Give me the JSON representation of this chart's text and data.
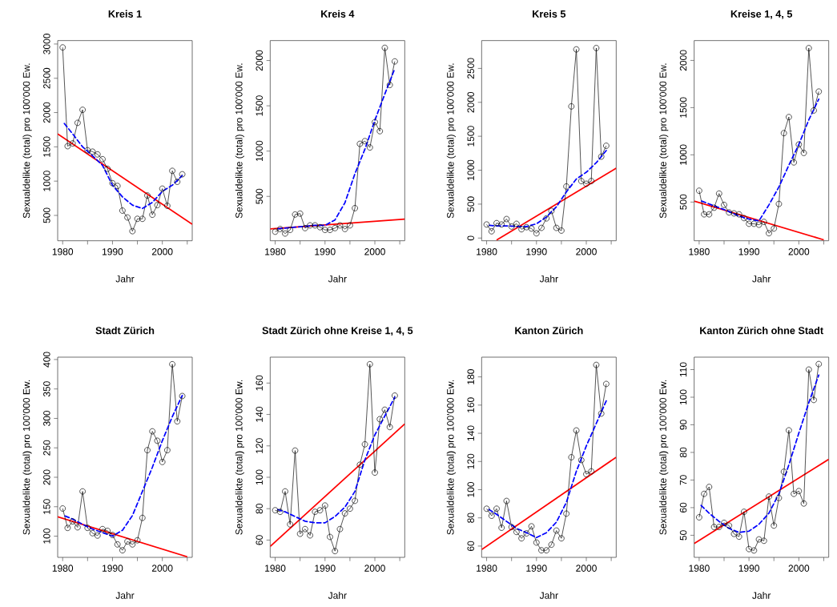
{
  "chart_data": [
    {
      "type": "line",
      "title": "Kreis 1",
      "xlabel": "Jahr",
      "ylabel": "Sexualdelikte (total) pro 100'000 Ew.",
      "xlim": [
        1979,
        2006
      ],
      "ylim": [
        130,
        3050
      ],
      "xticks": [
        1980,
        {
          "value": 1985,
          "label": null
        },
        1990,
        {
          "value": 1995,
          "label": null
        },
        2000,
        {
          "value": 2005,
          "label": null
        }
      ],
      "yticks": [
        500,
        1000,
        1500,
        2000,
        2500,
        3000
      ],
      "series": [
        {
          "color": "#000000",
          "marker": "circle",
          "line_style": "solid",
          "x": [
            1980,
            1981,
            1982,
            1983,
            1984,
            1985,
            1986,
            1987,
            1988,
            1989,
            1990,
            1991,
            1992,
            1993,
            1994,
            1995,
            1996,
            1997,
            1998,
            1999,
            2000,
            2001,
            2002,
            2003,
            2004
          ],
          "values": [
            2950,
            1510,
            1550,
            1850,
            2040,
            1450,
            1430,
            1390,
            1320,
            1180,
            970,
            930,
            570,
            470,
            270,
            450,
            450,
            790,
            510,
            650,
            890,
            640,
            1150,
            990,
            1100
          ]
        },
        {
          "color": "#0000ff",
          "marker": "none",
          "line_style": "dashed",
          "x": [
            1980,
            1982,
            1984,
            1986,
            1988,
            1990,
            1992,
            1994,
            1996,
            1998,
            2000,
            2002,
            2004
          ],
          "values": [
            1870,
            1690,
            1500,
            1370,
            1230,
            940,
            770,
            650,
            600,
            690,
            850,
            940,
            1080
          ]
        },
        {
          "color": "#ff0000",
          "marker": "none",
          "line_style": "solid",
          "x": [
            1979,
            2006
          ],
          "values": [
            1690,
            370
          ]
        }
      ]
    },
    {
      "type": "line",
      "title": "Kreis 4",
      "xlabel": "Jahr",
      "ylabel": "Sexualdelikte (total) pro 100'000 Ew.",
      "xlim": [
        1979,
        2006
      ],
      "ylim": [
        10,
        2220
      ],
      "xticks": [
        1980,
        {
          "value": 1985,
          "label": null
        },
        1990,
        {
          "value": 1995,
          "label": null
        },
        2000,
        {
          "value": 2005,
          "label": null
        }
      ],
      "yticks": [
        500,
        1000,
        1500,
        2000
      ],
      "series": [
        {
          "color": "#000000",
          "marker": "circle",
          "line_style": "solid",
          "x": [
            1980,
            1981,
            1982,
            1983,
            1984,
            1985,
            1986,
            1987,
            1988,
            1989,
            1990,
            1991,
            1992,
            1993,
            1994,
            1995,
            1996,
            1997,
            1998,
            1999,
            2000,
            2001,
            2002,
            2003,
            2004
          ],
          "values": [
            110,
            140,
            90,
            130,
            300,
            310,
            150,
            180,
            180,
            160,
            130,
            130,
            150,
            180,
            140,
            180,
            370,
            1080,
            1110,
            1040,
            1320,
            1220,
            2140,
            1730,
            1990
          ]
        },
        {
          "color": "#0000ff",
          "marker": "none",
          "line_style": "dashed",
          "x": [
            1980,
            1982,
            1984,
            1986,
            1988,
            1990,
            1992,
            1994,
            1996,
            1998,
            2000,
            2002,
            2004
          ],
          "values": [
            140,
            150,
            160,
            170,
            180,
            180,
            240,
            430,
            750,
            1020,
            1340,
            1630,
            1910
          ]
        },
        {
          "color": "#ff0000",
          "marker": "none",
          "line_style": "solid",
          "x": [
            1979,
            2006
          ],
          "values": [
            140,
            250
          ]
        }
      ]
    },
    {
      "type": "line",
      "title": "Kreis 5",
      "xlabel": "Jahr",
      "ylabel": "Sexualdelikte (total) pro 100'000 Ew.",
      "xlim": [
        1979,
        2006
      ],
      "ylim": [
        -40,
        2910
      ],
      "xticks": [
        1980,
        {
          "value": 1985,
          "label": null
        },
        1990,
        {
          "value": 1995,
          "label": null
        },
        2000,
        {
          "value": 2005,
          "label": null
        }
      ],
      "yticks": [
        0,
        500,
        1000,
        1500,
        2000,
        2500
      ],
      "series": [
        {
          "color": "#000000",
          "marker": "circle",
          "line_style": "solid",
          "x": [
            1980,
            1981,
            1982,
            1983,
            1984,
            1985,
            1986,
            1987,
            1988,
            1989,
            1990,
            1991,
            1992,
            1993,
            1994,
            1995,
            1996,
            1997,
            1998,
            1999,
            2000,
            2001,
            2002,
            2003,
            2004
          ],
          "values": [
            200,
            100,
            220,
            200,
            280,
            170,
            210,
            130,
            160,
            140,
            70,
            150,
            290,
            400,
            150,
            110,
            760,
            1940,
            2780,
            840,
            800,
            840,
            2800,
            1200,
            1360
          ]
        },
        {
          "color": "#0000ff",
          "marker": "none",
          "line_style": "dashed",
          "x": [
            1980,
            1982,
            1984,
            1986,
            1988,
            1990,
            1992,
            1994,
            1996,
            1998,
            2000,
            2002,
            2004
          ],
          "values": [
            190,
            180,
            180,
            170,
            170,
            210,
            310,
            460,
            680,
            870,
            970,
            1110,
            1290
          ]
        },
        {
          "color": "#ff0000",
          "marker": "none",
          "line_style": "solid",
          "x": [
            1982,
            2006
          ],
          "values": [
            -30,
            1030
          ]
        }
      ]
    },
    {
      "type": "line",
      "title": "Kreise 1, 4, 5",
      "xlabel": "Jahr",
      "ylabel": "Sexualdelikte (total) pro 100'000 Ew.",
      "xlim": [
        1979,
        2006
      ],
      "ylim": [
        90,
        2210
      ],
      "xticks": [
        1980,
        {
          "value": 1985,
          "label": null
        },
        1990,
        {
          "value": 1995,
          "label": null
        },
        2000,
        {
          "value": 2005,
          "label": null
        }
      ],
      "yticks": [
        500,
        1000,
        1500,
        2000
      ],
      "series": [
        {
          "color": "#000000",
          "marker": "circle",
          "line_style": "solid",
          "x": [
            1980,
            1981,
            1982,
            1983,
            1984,
            1985,
            1986,
            1987,
            1988,
            1989,
            1990,
            1991,
            1992,
            1993,
            1994,
            1995,
            1996,
            1997,
            1998,
            1999,
            2000,
            2001,
            2002,
            2003,
            2004
          ],
          "values": [
            620,
            370,
            370,
            440,
            590,
            470,
            390,
            380,
            370,
            330,
            270,
            270,
            260,
            290,
            170,
            220,
            480,
            1230,
            1400,
            920,
            1110,
            1020,
            2130,
            1470,
            1670
          ]
        },
        {
          "color": "#0000ff",
          "marker": "none",
          "line_style": "dashed",
          "x": [
            1980,
            1982,
            1984,
            1986,
            1988,
            1990,
            1992,
            1994,
            1996,
            1998,
            2000,
            2002,
            2004
          ],
          "values": [
            520,
            480,
            440,
            400,
            350,
            320,
            300,
            470,
            660,
            890,
            1110,
            1370,
            1590
          ]
        },
        {
          "color": "#ff0000",
          "marker": "none",
          "line_style": "solid",
          "x": [
            1979,
            2005
          ],
          "values": [
            510,
            100
          ]
        }
      ]
    },
    {
      "type": "line",
      "title": "Stadt Zürich",
      "xlabel": "Jahr",
      "ylabel": "Sexualdelikte (total) pro 100'000 Ew.",
      "xlim": [
        1979,
        2006
      ],
      "ylim": [
        64,
        404
      ],
      "xticks": [
        1980,
        {
          "value": 1985,
          "label": null
        },
        1990,
        {
          "value": 1995,
          "label": null
        },
        2000,
        {
          "value": 2005,
          "label": null
        }
      ],
      "yticks": [
        100,
        150,
        200,
        250,
        300,
        350,
        400
      ],
      "series": [
        {
          "color": "#000000",
          "marker": "circle",
          "line_style": "solid",
          "x": [
            1980,
            1981,
            1982,
            1983,
            1984,
            1985,
            1986,
            1987,
            1988,
            1989,
            1990,
            1991,
            1992,
            1993,
            1994,
            1995,
            1996,
            1997,
            1998,
            1999,
            2000,
            2001,
            2002,
            2003,
            2004
          ],
          "values": [
            147,
            114,
            125,
            115,
            176,
            114,
            105,
            101,
            112,
            109,
            102,
            86,
            76,
            91,
            86,
            93,
            131,
            246,
            278,
            262,
            226,
            246,
            392,
            295,
            338
          ]
        },
        {
          "color": "#0000ff",
          "marker": "none",
          "line_style": "dashed",
          "x": [
            1980,
            1982,
            1984,
            1986,
            1988,
            1990,
            1992,
            1994,
            1996,
            1998,
            2000,
            2002,
            2004
          ],
          "values": [
            136,
            129,
            120,
            112,
            106,
            100,
            110,
            135,
            176,
            217,
            262,
            303,
            339
          ]
        },
        {
          "color": "#ff0000",
          "marker": "none",
          "line_style": "solid",
          "x": [
            1979,
            2005
          ],
          "values": [
            133,
            65
          ]
        }
      ]
    },
    {
      "type": "line",
      "title": "Stadt Zürich ohne Kreise 1, 4, 5",
      "xlabel": "Jahr",
      "ylabel": "Sexualdelikte (total) pro 100'000 Ew.",
      "xlim": [
        1979,
        2006
      ],
      "ylim": [
        49,
        176.5
      ],
      "xticks": [
        1980,
        {
          "value": 1985,
          "label": null
        },
        1990,
        {
          "value": 1995,
          "label": null
        },
        2000,
        {
          "value": 2005,
          "label": null
        }
      ],
      "yticks": [
        60,
        80,
        100,
        120,
        140,
        160
      ],
      "series": [
        {
          "color": "#000000",
          "marker": "circle",
          "line_style": "solid",
          "x": [
            1980,
            1981,
            1982,
            1983,
            1984,
            1985,
            1986,
            1987,
            1988,
            1989,
            1990,
            1991,
            1992,
            1993,
            1994,
            1995,
            1996,
            1997,
            1998,
            1999,
            2000,
            2001,
            2002,
            2003,
            2004
          ],
          "values": [
            79,
            78,
            91,
            70,
            117,
            64,
            67,
            63,
            78,
            79,
            82,
            62,
            53,
            67,
            77,
            80,
            85,
            108,
            121,
            172,
            103,
            137,
            143,
            132,
            152
          ]
        },
        {
          "color": "#0000ff",
          "marker": "none",
          "line_style": "dashed",
          "x": [
            1980,
            1982,
            1984,
            1986,
            1988,
            1990,
            1992,
            1994,
            1996,
            1998,
            2000,
            2002,
            2004
          ],
          "values": [
            80,
            78,
            75,
            72,
            71,
            71,
            75,
            81,
            91,
            111,
            127,
            139,
            151
          ]
        },
        {
          "color": "#ff0000",
          "marker": "none",
          "line_style": "solid",
          "x": [
            1979,
            2006
          ],
          "values": [
            56,
            134
          ]
        }
      ]
    },
    {
      "type": "line",
      "title": "Kanton Zürich",
      "xlabel": "Jahr",
      "ylabel": "Sexualdelikte (total) pro 100'000 Ew.",
      "xlim": [
        1979,
        2006
      ],
      "ylim": [
        52,
        194
      ],
      "xticks": [
        1980,
        {
          "value": 1985,
          "label": null
        },
        1990,
        {
          "value": 1995,
          "label": null
        },
        2000,
        {
          "value": 2005,
          "label": null
        }
      ],
      "yticks": [
        60,
        80,
        100,
        120,
        140,
        160,
        180
      ],
      "series": [
        {
          "color": "#000000",
          "marker": "circle",
          "line_style": "solid",
          "x": [
            1980,
            1981,
            1982,
            1983,
            1984,
            1985,
            1986,
            1987,
            1988,
            1989,
            1990,
            1991,
            1992,
            1993,
            1994,
            1995,
            1996,
            1997,
            1998,
            1999,
            2000,
            2001,
            2002,
            2003,
            2004
          ],
          "values": [
            86.5,
            81.5,
            86.5,
            73,
            92,
            73.5,
            70,
            65.5,
            69,
            74,
            62.5,
            57,
            57,
            61,
            71,
            65.5,
            83,
            123,
            142,
            121,
            111,
            113,
            188.5,
            154,
            175
          ]
        },
        {
          "color": "#0000ff",
          "marker": "none",
          "line_style": "dashed",
          "x": [
            1980,
            1982,
            1984,
            1986,
            1988,
            1990,
            1992,
            1994,
            1996,
            1998,
            2000,
            2002,
            2004
          ],
          "values": [
            87,
            82.5,
            77.5,
            72.5,
            69.5,
            66,
            69.5,
            77,
            91,
            113,
            131,
            147,
            163
          ]
        },
        {
          "color": "#ff0000",
          "marker": "none",
          "line_style": "solid",
          "x": [
            1979,
            2006
          ],
          "values": [
            57.5,
            123
          ]
        }
      ]
    },
    {
      "type": "line",
      "title": "Kanton Zürich ohne Stadt",
      "xlabel": "Jahr",
      "ylabel": "Sexualdelikte (total) pro 100'000 Ew.",
      "xlim": [
        1979,
        2006
      ],
      "ylim": [
        42,
        114.5
      ],
      "xticks": [
        1980,
        {
          "value": 1985,
          "label": null
        },
        1990,
        {
          "value": 1995,
          "label": null
        },
        2000,
        {
          "value": 2005,
          "label": null
        }
      ],
      "yticks": [
        50,
        60,
        70,
        80,
        90,
        100,
        110
      ],
      "series": [
        {
          "color": "#000000",
          "marker": "circle",
          "line_style": "solid",
          "x": [
            1980,
            1981,
            1982,
            1983,
            1984,
            1985,
            1986,
            1987,
            1988,
            1989,
            1990,
            1991,
            1992,
            1993,
            1994,
            1995,
            1996,
            1997,
            1998,
            1999,
            2000,
            2001,
            2002,
            2003,
            2004
          ],
          "values": [
            56.5,
            65,
            67.5,
            53,
            53,
            54.5,
            53.5,
            50.5,
            49.5,
            58.5,
            45,
            44.5,
            48.5,
            48,
            64,
            53.5,
            63.5,
            73,
            88,
            65,
            66,
            61.5,
            110,
            99,
            112
          ]
        },
        {
          "color": "#0000ff",
          "marker": "none",
          "line_style": "dashed",
          "x": [
            1980,
            1982,
            1984,
            1986,
            1988,
            1990,
            1992,
            1994,
            1996,
            1998,
            2000,
            2002,
            2004
          ],
          "values": [
            61.5,
            58,
            55,
            52.5,
            51,
            51.5,
            54,
            58,
            65,
            75.5,
            87,
            98,
            108
          ]
        },
        {
          "color": "#ff0000",
          "marker": "none",
          "line_style": "solid",
          "x": [
            1979,
            2006
          ],
          "values": [
            47,
            77.5
          ]
        }
      ]
    }
  ]
}
